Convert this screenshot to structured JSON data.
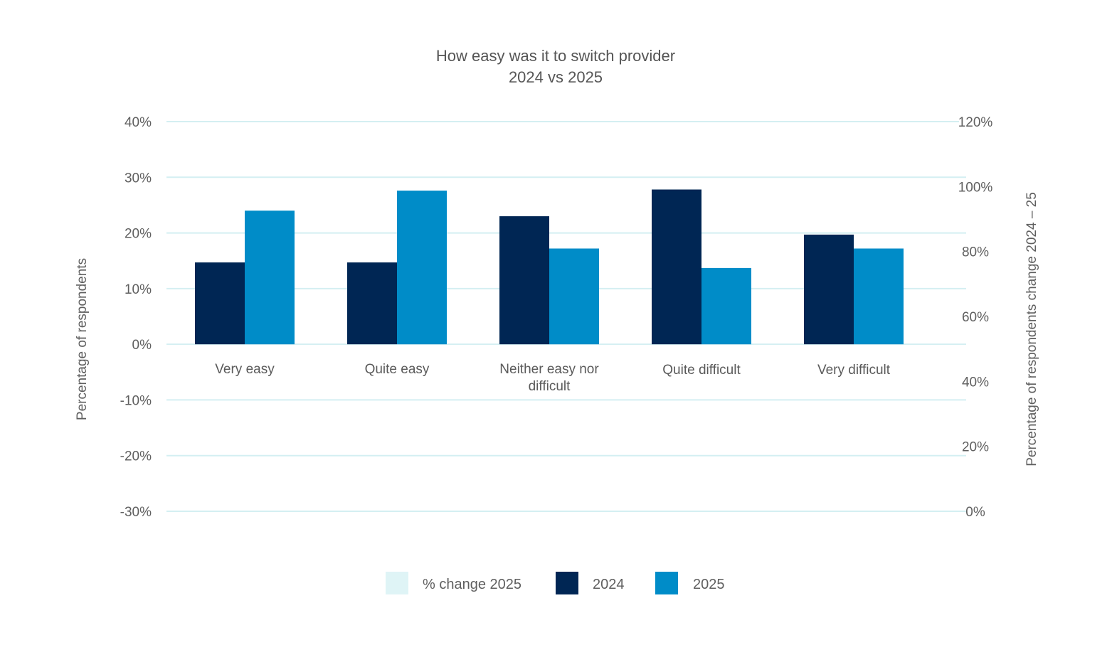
{
  "chart_data": {
    "type": "bar",
    "title": "How easy was it to switch provider",
    "subtitle": "2024 vs 2025",
    "categories": [
      "Very easy",
      "Quite easy",
      "Neither easy nor difficult",
      "Quite difficult",
      "Very difficult"
    ],
    "category_lines": [
      [
        "Very easy"
      ],
      [
        "Quite easy"
      ],
      [
        "Neither easy nor",
        "difficult"
      ],
      [
        "Quite difficult"
      ],
      [
        "Very difficult"
      ]
    ],
    "series": [
      {
        "name": "% change 2025",
        "color": "#dff4f6",
        "axis": "right",
        "values": [
          null,
          null,
          null,
          null,
          null
        ]
      },
      {
        "name": "2024",
        "color": "#002654",
        "axis": "left",
        "values": [
          14.7,
          14.7,
          23.0,
          27.8,
          19.7
        ]
      },
      {
        "name": "2025",
        "color": "#008cc8",
        "axis": "left",
        "values": [
          24.0,
          27.6,
          17.2,
          13.7,
          17.2
        ]
      }
    ],
    "ylabel": "Percentage of respondents",
    "ylim": [
      -30,
      40
    ],
    "yticks": [
      40,
      30,
      20,
      10,
      0,
      -10,
      -20,
      -30
    ],
    "ytick_labels": [
      "40%",
      "30%",
      "20%",
      "10%",
      "0%",
      "-10%",
      "-20%",
      "-30%"
    ],
    "y2label": "Percentage of respondents change 2024 – 25",
    "y2lim": [
      0,
      120
    ],
    "y2ticks": [
      120,
      100,
      80,
      60,
      40,
      20,
      0
    ],
    "y2tick_labels": [
      "120%",
      "100%",
      "80%",
      "60%",
      "40%",
      "20%",
      "0%"
    ],
    "grid": true,
    "gridline_color": "#d4eff2",
    "legend_position": "bottom",
    "legend": [
      "% change 2025",
      "2024",
      "2025"
    ]
  }
}
